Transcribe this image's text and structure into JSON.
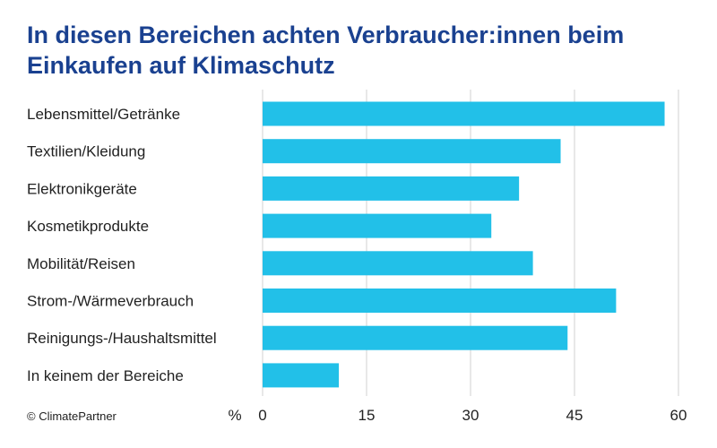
{
  "chart_data": {
    "type": "bar",
    "orientation": "horizontal",
    "title_lines": [
      "In diesen Bereichen achten Verbraucher:innen beim",
      "Einkaufen auf Klimaschutz"
    ],
    "categories": [
      "Lebensmittel/Getränke",
      "Textilien/Kleidung",
      "Elektronikgeräte",
      "Kosmetikprodukte",
      "Mobilität/Reisen",
      "Strom-/Wärmeverbrauch",
      "Reinigungs-/Haushaltsmittel",
      "In keinem der Bereiche"
    ],
    "values": [
      58,
      43,
      37,
      33,
      39,
      51,
      44,
      11
    ],
    "unit_label": "%",
    "xlim": [
      0,
      60
    ],
    "xticks": [
      0,
      15,
      30,
      45,
      60
    ],
    "grid": true,
    "bar_color": "#22c0e8",
    "grid_color": "#d0d0d0",
    "title_color": "#1a4190"
  },
  "credit": "© ClimatePartner"
}
